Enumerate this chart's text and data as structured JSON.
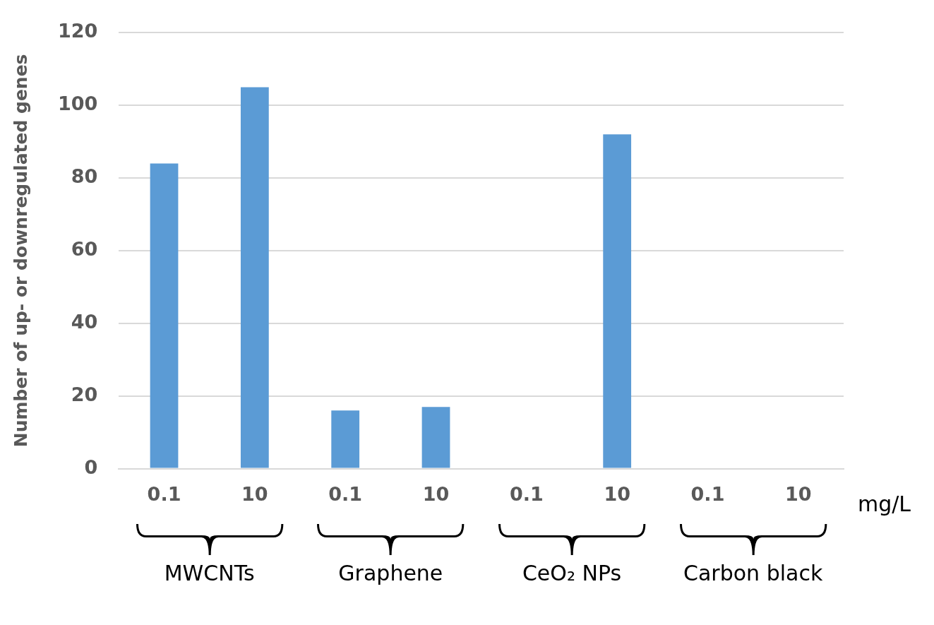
{
  "chart_data": {
    "type": "bar",
    "ylabel": "Number of up- or downregulated genes",
    "xlabel": "mg/L",
    "categories": [
      "0.1",
      "10",
      "0.1",
      "10",
      "0.1",
      "10",
      "0.1",
      "10"
    ],
    "values": [
      84,
      105,
      16,
      17,
      0,
      92,
      0,
      0
    ],
    "color": "#5b9bd5",
    "ylim": [
      0,
      120
    ],
    "yticks": [
      0,
      20,
      40,
      60,
      80,
      100,
      120
    ],
    "grid": "y",
    "legend": false,
    "annotations": [
      "MWCNTs",
      "Graphene",
      "CeO₂ NPs",
      "Carbon black"
    ]
  }
}
